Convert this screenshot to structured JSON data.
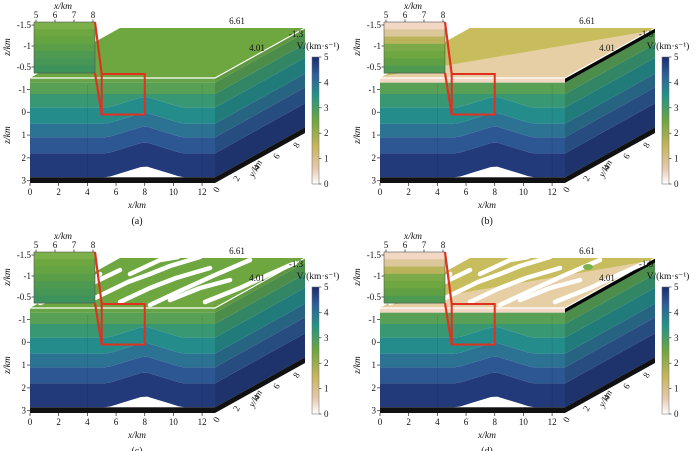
{
  "colors": {
    "crack": "#ffffff",
    "frame": "#e03020",
    "black_layer": "#111111",
    "top_clean": "#6ea63f",
    "top_shallow": "#c8bd5c",
    "near_surface_shallow": "#f2d7c5",
    "green_patch": "#78b24a"
  },
  "chart_data": [
    {
      "type": "3d-velocity-model",
      "panel_label": "(a)",
      "xlabel": "x/km",
      "ylabel": "z/km",
      "depthlabel": "y/km",
      "x_ticks": [
        "0",
        "2",
        "4",
        "6",
        "8",
        "10",
        "12"
      ],
      "z_ticks": [
        "-1.5",
        "-1",
        "0",
        "1",
        "2",
        "3"
      ],
      "y_ticks": [
        "0",
        "2",
        "4",
        "6",
        "8"
      ],
      "top_label_right": "6.61",
      "top_label_mid": "4.01",
      "top_label_edge": "-1.3",
      "inset": {
        "xlabel": "x/km",
        "ylabel": "z/km",
        "x_ticks": [
          "5",
          "6",
          "7",
          "8"
        ],
        "z_ticks": [
          "-1.5",
          "-1",
          "-0.5"
        ]
      },
      "colorbar": {
        "label": "V/(km·s⁻¹)",
        "ticks": [
          "5",
          "4",
          "3",
          "2",
          "1",
          "0"
        ],
        "range": [
          0,
          5
        ]
      },
      "layer_velocities": [
        2.8,
        3.2,
        3.6,
        4.0,
        4.4,
        4.8
      ],
      "near_surface_low_velocity": false,
      "cracks": false
    },
    {
      "type": "3d-velocity-model",
      "panel_label": "(b)",
      "xlabel": "x/km",
      "ylabel": "z/km",
      "depthlabel": "y/km",
      "x_ticks": [
        "0",
        "2",
        "4",
        "6",
        "8",
        "10",
        "12"
      ],
      "z_ticks": [
        "-1.5",
        "-1",
        "0",
        "1",
        "2",
        "3"
      ],
      "y_ticks": [
        "0",
        "2",
        "4",
        "6",
        "8"
      ],
      "top_label_right": "6.61",
      "top_label_mid": "4.01",
      "top_label_edge": "-1.3",
      "inset": {
        "xlabel": "x/km",
        "ylabel": "z/km",
        "x_ticks": [
          "5",
          "6",
          "7",
          "8"
        ],
        "z_ticks": [
          "-1.5",
          "-1",
          "-0.5"
        ]
      },
      "colorbar": {
        "label": "V/(km·s⁻¹)",
        "ticks": [
          "5",
          "4",
          "3",
          "2",
          "1",
          "0"
        ],
        "range": [
          0,
          5
        ]
      },
      "layer_velocities": [
        2.8,
        3.2,
        3.6,
        4.0,
        4.4,
        4.8
      ],
      "near_surface_low_velocity": true,
      "cracks": false
    },
    {
      "type": "3d-velocity-model",
      "panel_label": "(c)",
      "xlabel": "x/km",
      "ylabel": "z/km",
      "depthlabel": "y/km",
      "x_ticks": [
        "0",
        "2",
        "4",
        "6",
        "8",
        "10",
        "12"
      ],
      "z_ticks": [
        "-1.5",
        "-1",
        "0",
        "1",
        "2",
        "3"
      ],
      "y_ticks": [
        "0",
        "2",
        "4",
        "6",
        "8"
      ],
      "top_label_right": "6.61",
      "top_label_mid": "4.01",
      "top_label_edge": "-1.3",
      "inset": {
        "xlabel": "x/km",
        "ylabel": "z/km",
        "x_ticks": [
          "5",
          "6",
          "7",
          "8"
        ],
        "z_ticks": [
          "-1.5",
          "-1",
          "-0.5"
        ]
      },
      "colorbar": {
        "label": "V/(km·s⁻¹)",
        "ticks": [
          "5",
          "4",
          "3",
          "2",
          "1",
          "0"
        ],
        "range": [
          0,
          5
        ]
      },
      "layer_velocities": [
        2.8,
        3.2,
        3.6,
        4.0,
        4.4,
        4.8
      ],
      "near_surface_low_velocity": false,
      "cracks": true
    },
    {
      "type": "3d-velocity-model",
      "panel_label": "(d)",
      "xlabel": "x/km",
      "ylabel": "z/km",
      "depthlabel": "y/km",
      "x_ticks": [
        "0",
        "2",
        "4",
        "6",
        "8",
        "10",
        "12"
      ],
      "z_ticks": [
        "-1.5",
        "-1",
        "0",
        "1",
        "2",
        "3"
      ],
      "y_ticks": [
        "0",
        "2",
        "4",
        "6",
        "8"
      ],
      "top_label_right": "6.61",
      "top_label_mid": "4.01",
      "top_label_edge": "-1.3",
      "inset": {
        "xlabel": "x/km",
        "ylabel": "z/km",
        "x_ticks": [
          "5",
          "6",
          "7",
          "8"
        ],
        "z_ticks": [
          "-1.5",
          "-1",
          "-0.5"
        ]
      },
      "colorbar": {
        "label": "V/(km·s⁻¹)",
        "ticks": [
          "5",
          "4",
          "3",
          "2",
          "1",
          "0"
        ],
        "range": [
          0,
          5
        ]
      },
      "layer_velocities": [
        2.8,
        3.2,
        3.6,
        4.0,
        4.4,
        4.8
      ],
      "near_surface_low_velocity": true,
      "cracks": true
    }
  ]
}
